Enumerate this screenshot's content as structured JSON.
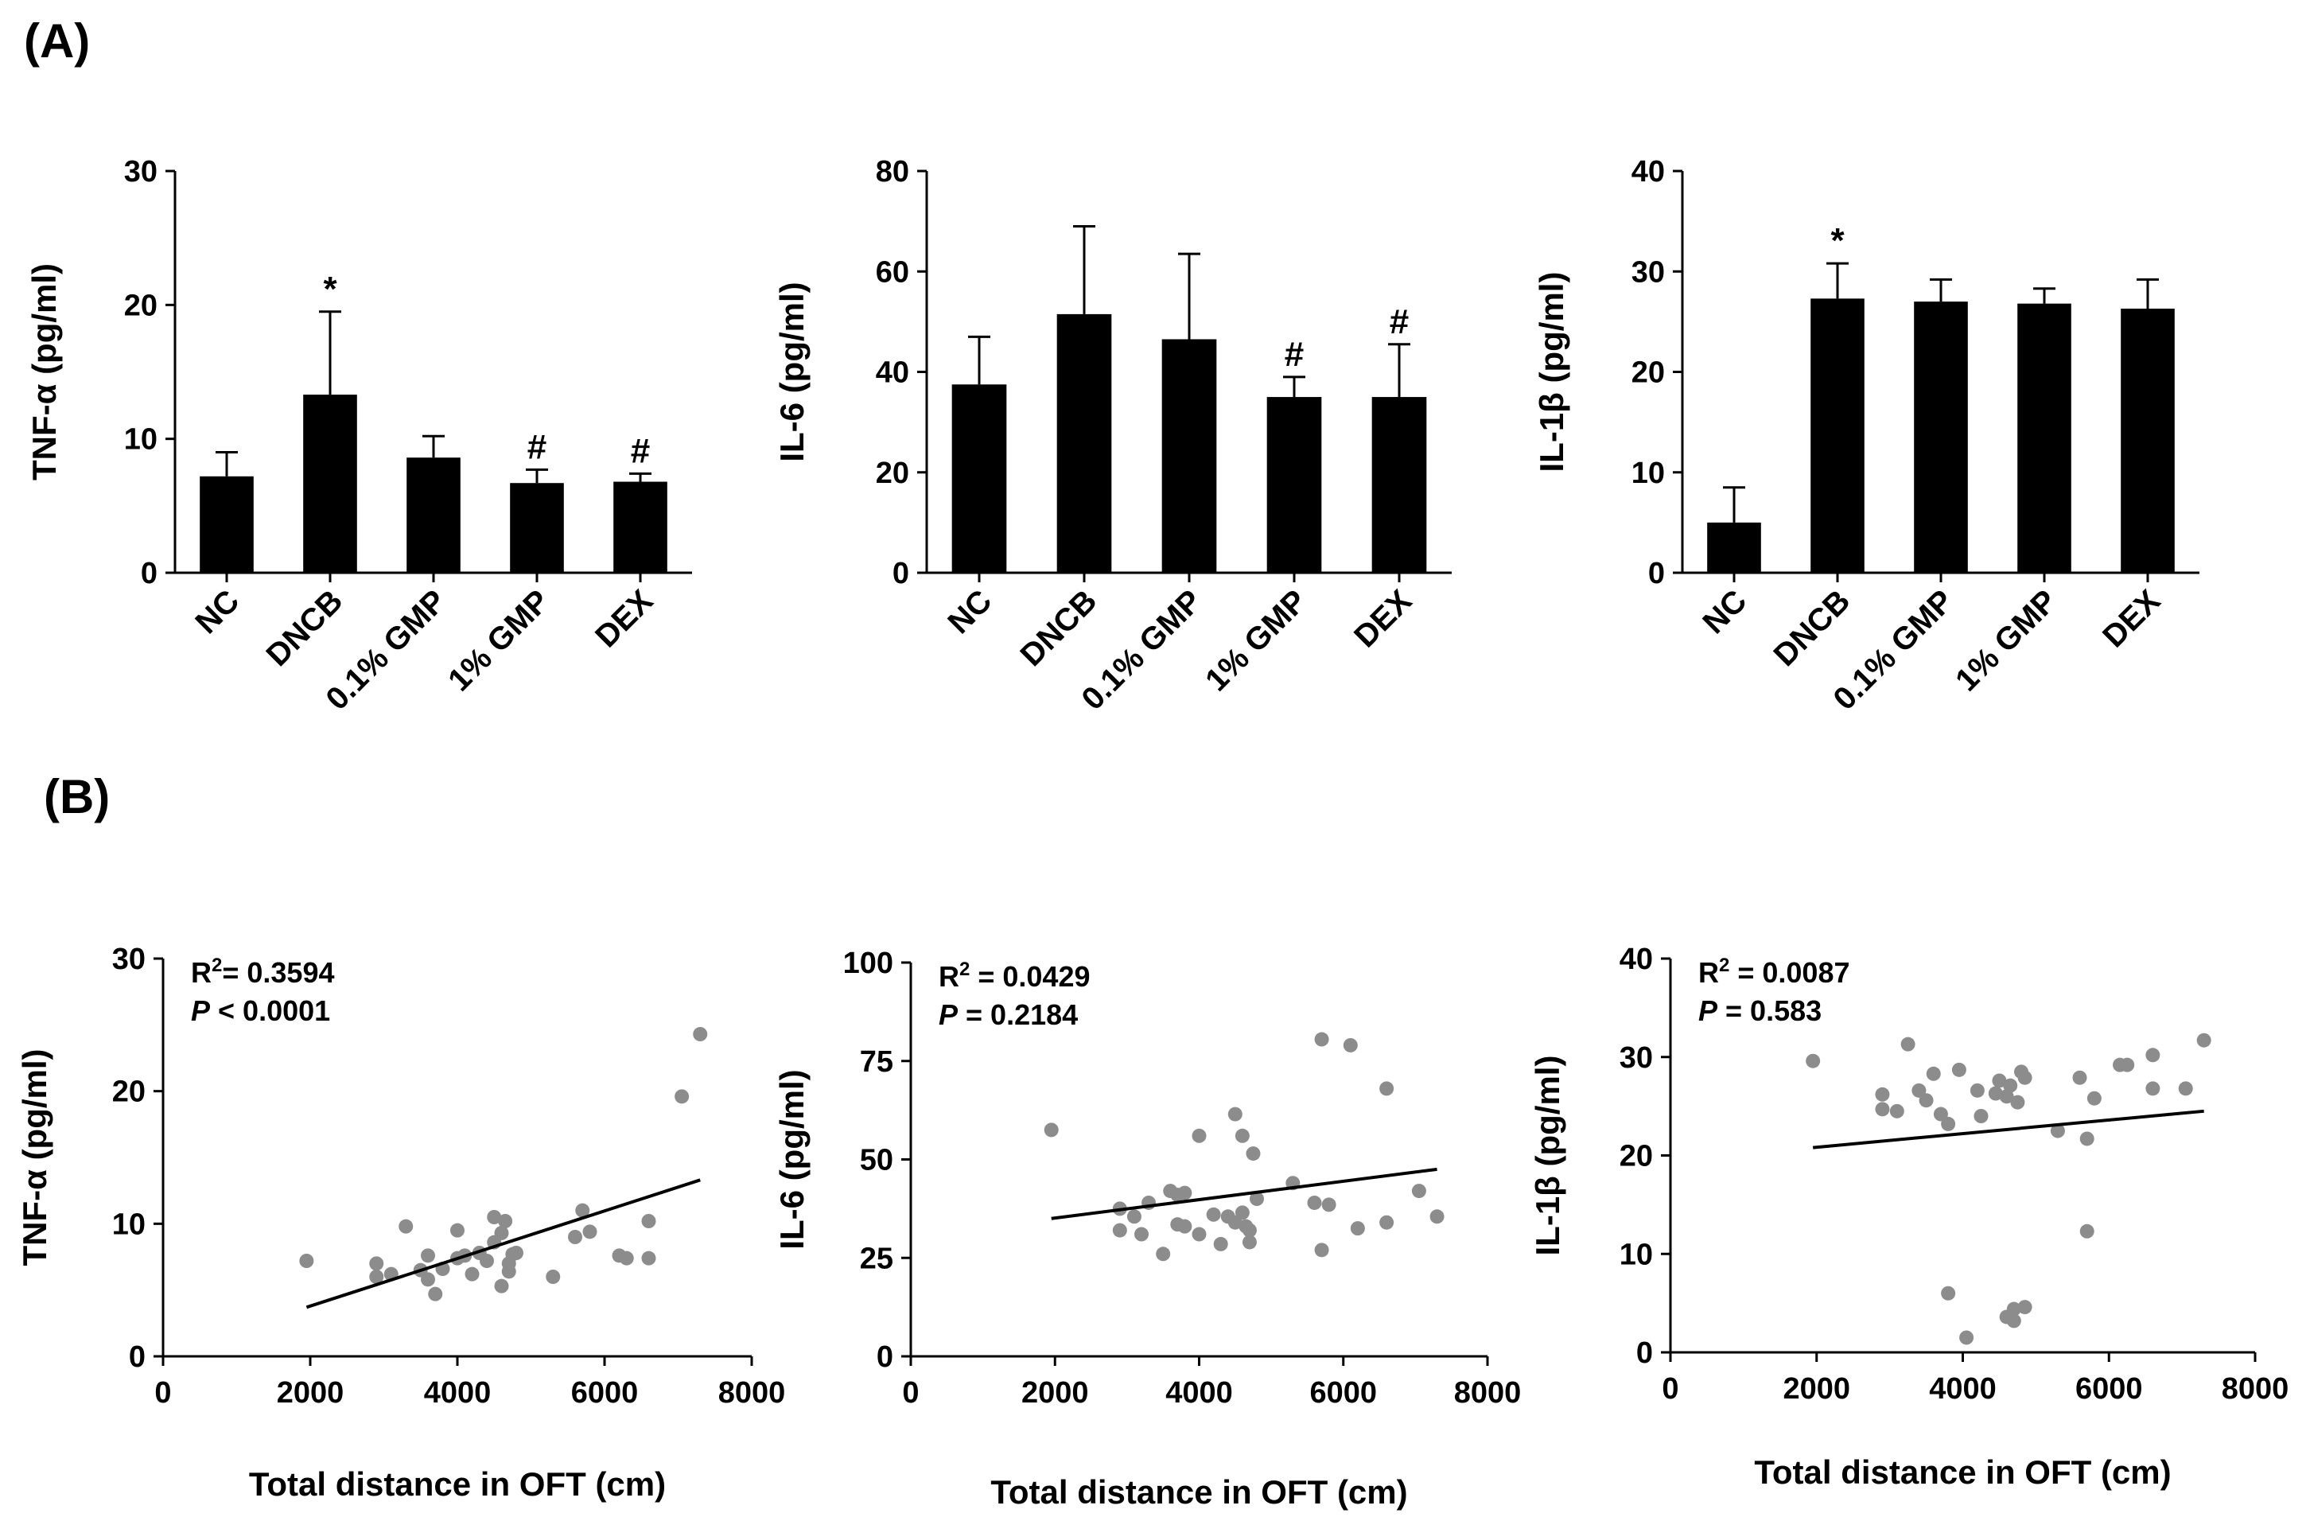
{
  "panel_labels": [
    "(A)",
    "(B)"
  ],
  "colors": {
    "bar": "#000000",
    "point": "#8c8c8c",
    "axis": "#000000",
    "fit": "#000000"
  },
  "chart_data": [
    {
      "type": "bar",
      "title": "",
      "xlabel": "",
      "ylabel": "TNF-α (pg/ml)",
      "ylim": [
        0,
        30
      ],
      "yticks": [
        0,
        10,
        20,
        30
      ],
      "categories": [
        "NC",
        "DNCB",
        "0.1% GMP",
        "1% GMP",
        "DEX"
      ],
      "values": [
        7.2,
        13.3,
        8.6,
        6.7,
        6.8
      ],
      "errors": [
        1.8,
        6.2,
        1.6,
        1.0,
        0.6
      ],
      "markers": [
        "",
        "*",
        "",
        "#",
        "#"
      ]
    },
    {
      "type": "bar",
      "title": "",
      "xlabel": "",
      "ylabel": "IL-6 (pg/ml)",
      "ylim": [
        0,
        80
      ],
      "yticks": [
        0,
        20,
        40,
        60,
        80
      ],
      "categories": [
        "NC",
        "DNCB",
        "0.1% GMP",
        "1% GMP",
        "DEX"
      ],
      "values": [
        37.5,
        51.5,
        46.5,
        35.0,
        35.0
      ],
      "errors": [
        9.5,
        17.5,
        17.0,
        4.0,
        10.5
      ],
      "markers": [
        "",
        "",
        "",
        "#",
        "#"
      ]
    },
    {
      "type": "bar",
      "title": "",
      "xlabel": "",
      "ylabel": "IL-1β (pg/ml)",
      "ylim": [
        0,
        40
      ],
      "yticks": [
        0,
        10,
        20,
        30,
        40
      ],
      "categories": [
        "NC",
        "DNCB",
        "0.1% GMP",
        "1% GMP",
        "DEX"
      ],
      "values": [
        5.0,
        27.3,
        27.0,
        26.8,
        26.3
      ],
      "errors": [
        3.5,
        3.5,
        2.2,
        1.5,
        2.9
      ],
      "markers": [
        "",
        "*",
        "",
        "",
        ""
      ]
    },
    {
      "type": "scatter",
      "xlabel": "Total distance in OFT (cm)",
      "ylabel": "TNF-α (pg/ml)",
      "xlim": [
        0,
        8000
      ],
      "ylim": [
        0,
        30
      ],
      "xticks": [
        0,
        2000,
        4000,
        6000,
        8000
      ],
      "yticks": [
        0,
        10,
        20,
        30
      ],
      "r2_label": "R",
      "r2_sup": "2",
      "r2_value": "= 0.3594",
      "p_label": "P",
      "p_value": " < 0.0001",
      "fit": [
        [
          1950,
          3.7
        ],
        [
          7300,
          13.3
        ]
      ],
      "points": [
        [
          1950,
          7.2
        ],
        [
          2900,
          7.0
        ],
        [
          2900,
          6.0
        ],
        [
          3100,
          6.2
        ],
        [
          3300,
          9.8
        ],
        [
          3500,
          6.5
        ],
        [
          3600,
          5.8
        ],
        [
          3700,
          4.7
        ],
        [
          3600,
          7.6
        ],
        [
          3800,
          6.6
        ],
        [
          4000,
          7.4
        ],
        [
          4000,
          9.5
        ],
        [
          4100,
          7.6
        ],
        [
          4200,
          6.2
        ],
        [
          4300,
          7.8
        ],
        [
          4400,
          7.2
        ],
        [
          4500,
          8.6
        ],
        [
          4500,
          10.5
        ],
        [
          4600,
          9.3
        ],
        [
          4600,
          5.3
        ],
        [
          4650,
          10.2
        ],
        [
          4700,
          6.4
        ],
        [
          4700,
          7.0
        ],
        [
          4750,
          7.7
        ],
        [
          4800,
          7.8
        ],
        [
          5300,
          6.0
        ],
        [
          5600,
          9.0
        ],
        [
          5700,
          11.0
        ],
        [
          5800,
          9.4
        ],
        [
          6200,
          7.6
        ],
        [
          6300,
          7.4
        ],
        [
          6600,
          10.2
        ],
        [
          6600,
          7.4
        ],
        [
          7050,
          19.6
        ],
        [
          7300,
          24.3
        ]
      ]
    },
    {
      "type": "scatter",
      "xlabel": "Total distance in OFT (cm)",
      "ylabel": "IL-6 (pg/ml)",
      "xlim": [
        0,
        8000
      ],
      "ylim": [
        0,
        100
      ],
      "xticks": [
        0,
        2000,
        4000,
        6000,
        8000
      ],
      "yticks": [
        0,
        25,
        50,
        75,
        100
      ],
      "r2_label": "R",
      "r2_sup": "2",
      "r2_value": " = 0.0429",
      "p_label": "P",
      "p_value": " = 0.2184",
      "fit": [
        [
          1950,
          35.0
        ],
        [
          7300,
          47.5
        ]
      ],
      "points": [
        [
          1950,
          57.5
        ],
        [
          2900,
          37.5
        ],
        [
          2900,
          32.0
        ],
        [
          3100,
          35.5
        ],
        [
          3200,
          31.0
        ],
        [
          3300,
          39.0
        ],
        [
          3500,
          26.0
        ],
        [
          3600,
          42.0
        ],
        [
          3700,
          33.5
        ],
        [
          3700,
          41.0
        ],
        [
          3800,
          41.5
        ],
        [
          3800,
          33.0
        ],
        [
          4000,
          31.0
        ],
        [
          4000,
          56.0
        ],
        [
          4200,
          36.0
        ],
        [
          4300,
          28.5
        ],
        [
          4400,
          35.5
        ],
        [
          4500,
          34.0
        ],
        [
          4500,
          61.5
        ],
        [
          4600,
          56.0
        ],
        [
          4600,
          36.5
        ],
        [
          4650,
          33.0
        ],
        [
          4700,
          32.0
        ],
        [
          4700,
          29.0
        ],
        [
          4750,
          51.5
        ],
        [
          4800,
          40.0
        ],
        [
          5300,
          44.0
        ],
        [
          5600,
          39.0
        ],
        [
          5700,
          27.0
        ],
        [
          5800,
          38.5
        ],
        [
          5700,
          80.5
        ],
        [
          6100,
          79.0
        ],
        [
          6200,
          32.5
        ],
        [
          6600,
          68.0
        ],
        [
          6600,
          34.0
        ],
        [
          7050,
          42.0
        ],
        [
          7300,
          35.5
        ]
      ]
    },
    {
      "type": "scatter",
      "xlabel": "Total distance in OFT (cm)",
      "ylabel": "IL-1β (pg/ml)",
      "xlim": [
        0,
        8000
      ],
      "ylim": [
        0,
        40
      ],
      "xticks": [
        0,
        2000,
        4000,
        6000,
        8000
      ],
      "yticks": [
        0,
        10,
        20,
        30,
        40
      ],
      "r2_label": "R",
      "r2_sup": "2",
      "r2_value": " = 0.0087",
      "p_label": "P",
      "p_value": " = 0.583",
      "fit": [
        [
          1950,
          20.8
        ],
        [
          7300,
          24.5
        ]
      ],
      "points": [
        [
          1950,
          29.6
        ],
        [
          2900,
          26.2
        ],
        [
          2900,
          24.7
        ],
        [
          3100,
          24.5
        ],
        [
          3250,
          31.3
        ],
        [
          3400,
          26.6
        ],
        [
          3500,
          25.6
        ],
        [
          3600,
          28.3
        ],
        [
          3700,
          24.2
        ],
        [
          3800,
          23.2
        ],
        [
          3800,
          6.0
        ],
        [
          3950,
          28.7
        ],
        [
          4050,
          1.5
        ],
        [
          4200,
          26.6
        ],
        [
          4250,
          24.0
        ],
        [
          4450,
          26.3
        ],
        [
          4500,
          27.6
        ],
        [
          4600,
          26.0
        ],
        [
          4600,
          3.6
        ],
        [
          4650,
          27.1
        ],
        [
          4700,
          4.4
        ],
        [
          4700,
          3.2
        ],
        [
          4750,
          25.4
        ],
        [
          4800,
          28.5
        ],
        [
          4850,
          27.9
        ],
        [
          4850,
          4.6
        ],
        [
          5300,
          22.5
        ],
        [
          5600,
          27.9
        ],
        [
          5700,
          21.7
        ],
        [
          5700,
          12.3
        ],
        [
          5800,
          25.8
        ],
        [
          6150,
          29.2
        ],
        [
          6250,
          29.2
        ],
        [
          6600,
          30.2
        ],
        [
          6600,
          26.8
        ],
        [
          7050,
          26.8
        ],
        [
          7300,
          31.7
        ]
      ]
    }
  ]
}
